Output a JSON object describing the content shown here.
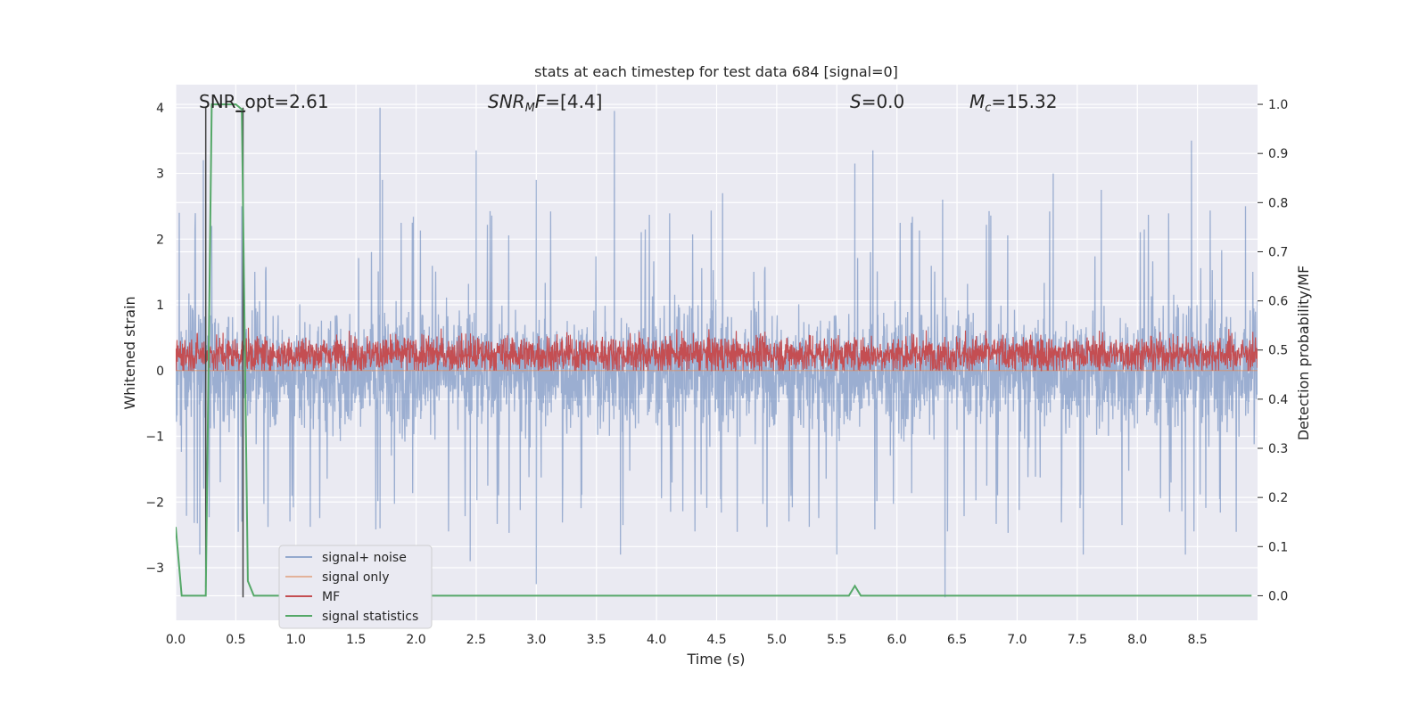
{
  "chart_data": {
    "type": "line",
    "title": "stats at each timestep for test data 684 [signal=0]",
    "xlabel": "Time (s)",
    "ylabel": "Whitened strain",
    "y2label": "Detection probability/MF",
    "xlim": [
      0.0,
      9.0
    ],
    "ylim": [
      -3.8,
      4.35
    ],
    "y2lim": [
      -0.05,
      1.04
    ],
    "xticks": [
      0.0,
      0.5,
      1.0,
      1.5,
      2.0,
      2.5,
      3.0,
      3.5,
      4.0,
      4.5,
      5.0,
      5.5,
      6.0,
      6.5,
      7.0,
      7.5,
      8.0,
      8.5
    ],
    "yticks": [
      -3,
      -2,
      -1,
      0,
      1,
      2,
      3,
      4
    ],
    "y2ticks": [
      0.0,
      0.1,
      0.2,
      0.3,
      0.4,
      0.5,
      0.6,
      0.7,
      0.8,
      0.9,
      1.0
    ],
    "grid": true,
    "legend_position": "lower-left",
    "annotations": {
      "snr_opt": "SNR_opt=2.61",
      "snr_mf_base": "SNR",
      "snr_mf_sub": "M",
      "snr_mf_rest": "F=[4.4]",
      "s_base": "S",
      "s_rest": "=0.0",
      "mc_base": "M",
      "mc_sub": "c",
      "mc_rest": "=15.32"
    },
    "series": [
      {
        "name": "signal+ noise",
        "color": "#4c72b0",
        "style": "dense noise",
        "band": [
          -1.3,
          1.3
        ],
        "peak_x": [
          0.03,
          0.23,
          0.3,
          0.55,
          1.7,
          1.72,
          2.5,
          3.0,
          3.65,
          4.55,
          5.65,
          5.8,
          6.38,
          7.3,
          7.7,
          8.45,
          8.9
        ],
        "peak_y": [
          2.4,
          3.2,
          2.2,
          2.5,
          4.0,
          2.9,
          3.35,
          2.9,
          3.95,
          2.7,
          3.15,
          3.35,
          2.6,
          3.0,
          2.75,
          3.5,
          2.5
        ],
        "trough_x": [
          0.2,
          0.55,
          1.7,
          2.45,
          3.0,
          3.7,
          5.5,
          6.4,
          7.55,
          8.4
        ],
        "trough_y": [
          -2.8,
          -2.3,
          -2.4,
          -2.9,
          -3.25,
          -2.8,
          -2.8,
          -3.45,
          -2.8,
          -2.8
        ]
      },
      {
        "name": "signal only",
        "color": "#dd8452",
        "x": [
          0.0,
          9.0
        ],
        "y": [
          0.0,
          0.0
        ]
      },
      {
        "name": "MF",
        "color": "#c44e52",
        "style": "dense noise",
        "band": [
          0.0,
          0.95
        ],
        "center": 0.25
      },
      {
        "name": "signal statistics",
        "color": "#55a868",
        "axis": "right",
        "x": [
          0.0,
          0.05,
          0.1,
          0.15,
          0.2,
          0.25,
          0.3,
          0.35,
          0.4,
          0.45,
          0.5,
          0.55,
          0.6,
          0.65,
          0.7,
          0.75,
          5.55,
          5.6,
          5.65,
          5.7,
          5.75,
          5.8,
          8.95
        ],
        "y": [
          0.14,
          0.0,
          0.0,
          0.0,
          0.0,
          0.0,
          1.0,
          1.0,
          1.0,
          1.0,
          1.0,
          0.99,
          0.03,
          0.0,
          0.0,
          0.0,
          0.0,
          0.0,
          0.02,
          0.0,
          0.0,
          0.0,
          0.0
        ]
      }
    ],
    "markers": {
      "color": "#444444",
      "x": [
        0.25,
        0.56
      ],
      "y_top": [
        4.0,
        4.0
      ],
      "y_bottom": [
        -3.3,
        -3.45
      ]
    }
  },
  "colors": {
    "plot_background": "#eaeaf2",
    "grid": "#ffffff"
  }
}
